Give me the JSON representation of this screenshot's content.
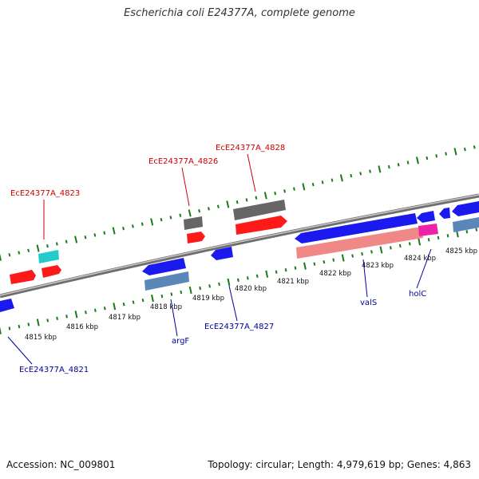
{
  "header": {
    "title": "Escherichia coli E24377A, complete genome"
  },
  "footer": {
    "accession": "Accession: NC_009801",
    "summary": "Topology: circular; Length: 4,979,619 bp; Genes: 4,863"
  },
  "colors": {
    "forward_gene": "#ff1a1a",
    "forward_dark": "#666666",
    "forward_cyan": "#22cccc",
    "reverse_gene": "#1a1aee",
    "reverse_steel": "#5b87b8",
    "reverse_pink": "#f08888",
    "reverse_magenta": "#ee22aa",
    "forward_label": "#cc0000",
    "reverse_label": "#000099",
    "ticks": "#1a7a1a",
    "backbone": "#888888"
  },
  "scale": {
    "ticks": [
      {
        "label": "4815 kbp"
      },
      {
        "label": "4816 kbp"
      },
      {
        "label": "4817 kbp"
      },
      {
        "label": "4818 kbp"
      },
      {
        "label": "4819 kbp"
      },
      {
        "label": "4820 kbp"
      },
      {
        "label": "4821 kbp"
      },
      {
        "label": "4822 kbp"
      },
      {
        "label": "4823 kbp"
      },
      {
        "label": "4824 kbp"
      },
      {
        "label": "4825 kbp"
      }
    ]
  },
  "labels": {
    "forward": [
      {
        "text": "EcE24377A_4823"
      },
      {
        "text": "EcE24377A_4826"
      },
      {
        "text": "EcE24377A_4828"
      }
    ],
    "reverse": [
      {
        "text": "EcE24377A_4821"
      },
      {
        "text": "argF"
      },
      {
        "text": "EcE24377A_4827"
      },
      {
        "text": "valS"
      },
      {
        "text": "holC"
      }
    ]
  }
}
